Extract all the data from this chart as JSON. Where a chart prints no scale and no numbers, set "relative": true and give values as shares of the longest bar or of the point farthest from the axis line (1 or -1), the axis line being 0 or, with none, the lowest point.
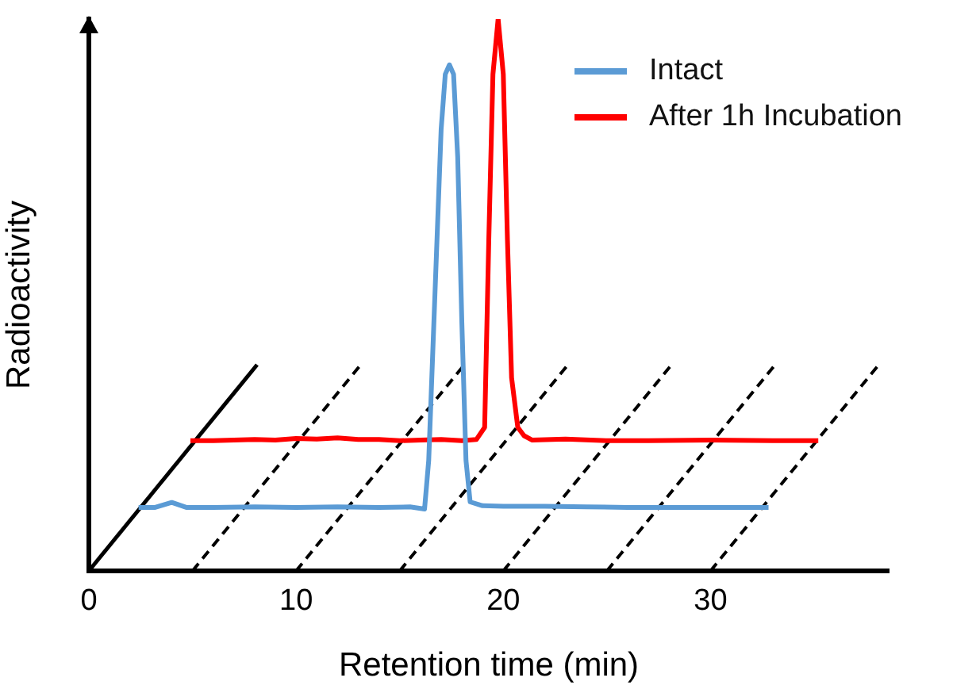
{
  "chart_data": {
    "type": "line",
    "relative": true,
    "xlabel": "Retention time (min)",
    "ylabel": "Radioactivity",
    "xlim": [
      0,
      38.6
    ],
    "xticks": [
      0,
      10,
      20,
      30
    ],
    "grid": false,
    "legend": "top right",
    "marker": "none",
    "line_style": "solid",
    "series": [
      {
        "name": "Intact",
        "color": "#5b9bd5",
        "x": [
          2.4,
          3.2,
          4.0,
          4.7,
          6,
          8,
          10,
          12,
          14,
          15.5,
          16.2,
          16.4,
          16.7,
          17.0,
          17.2,
          17.4,
          17.6,
          17.8,
          18.0,
          18.2,
          18.4,
          19,
          20,
          22,
          24,
          26,
          28,
          30,
          32.8
        ],
        "values": [
          0.115,
          0.115,
          0.124,
          0.115,
          0.115,
          0.116,
          0.115,
          0.116,
          0.115,
          0.116,
          0.112,
          0.2,
          0.5,
          0.8,
          0.9,
          0.917,
          0.9,
          0.75,
          0.45,
          0.2,
          0.125,
          0.118,
          0.117,
          0.117,
          0.116,
          0.115,
          0.115,
          0.115,
          0.115
        ]
      },
      {
        "name": "After 1h Incubation",
        "color": "#ff0000",
        "x": [
          4.9,
          6,
          8,
          9,
          10,
          11,
          12,
          13,
          14,
          15,
          16,
          17,
          18,
          18.7,
          19.1,
          19.3,
          19.5,
          19.75,
          20.0,
          20.2,
          20.4,
          20.7,
          21.0,
          21.4,
          23,
          25,
          27,
          30,
          33,
          35.2
        ],
        "values": [
          0.236,
          0.236,
          0.238,
          0.237,
          0.24,
          0.239,
          0.241,
          0.238,
          0.238,
          0.236,
          0.237,
          0.238,
          0.236,
          0.238,
          0.26,
          0.6,
          0.9,
          1.0,
          0.9,
          0.6,
          0.35,
          0.26,
          0.245,
          0.237,
          0.239,
          0.236,
          0.236,
          0.237,
          0.236,
          0.236
        ]
      }
    ]
  }
}
